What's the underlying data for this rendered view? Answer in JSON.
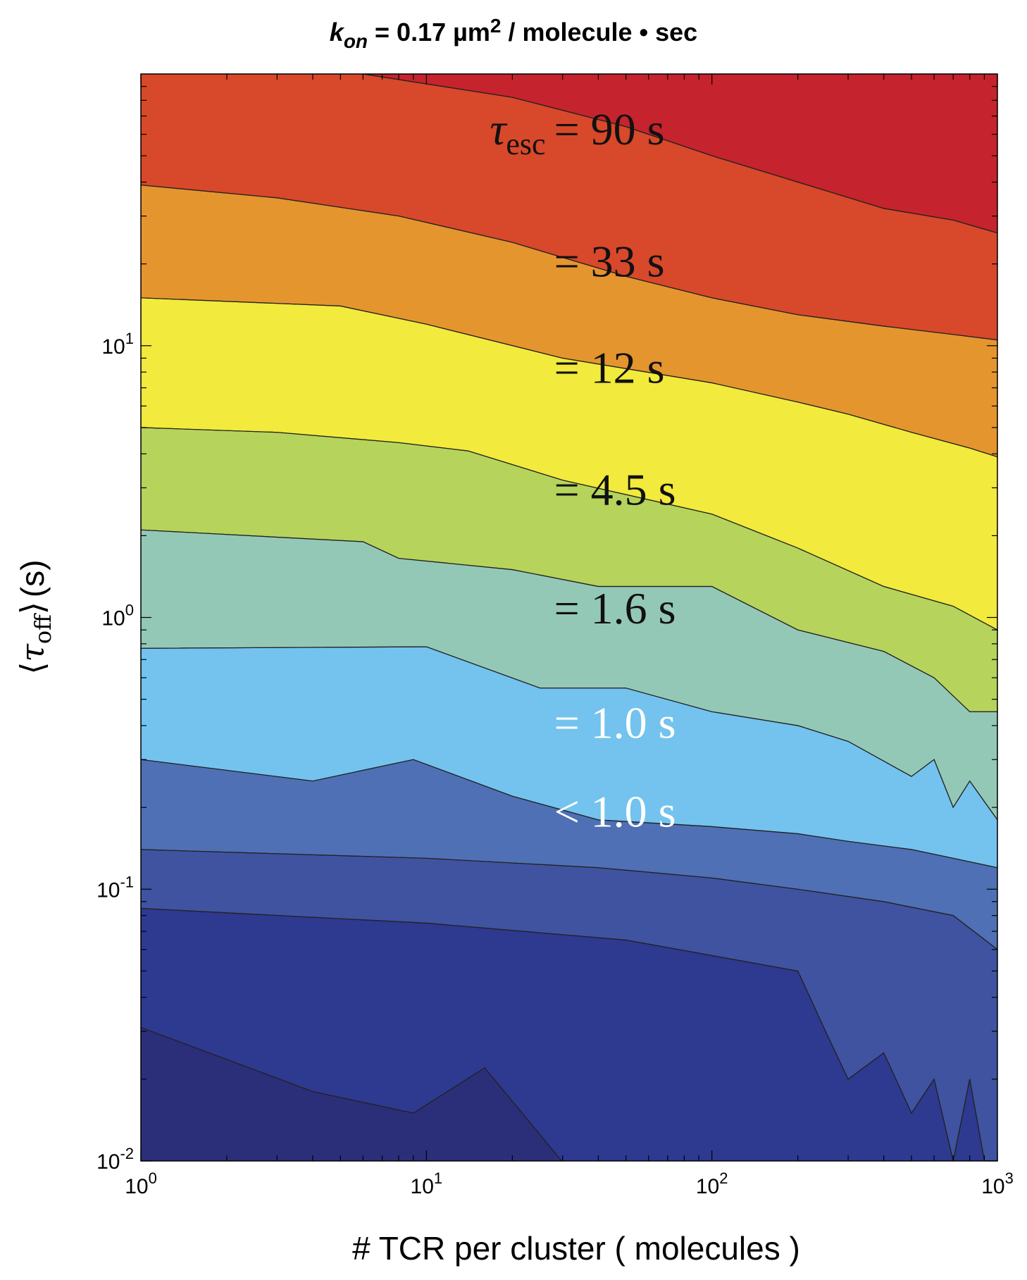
{
  "chart_data": {
    "type": "heatmap",
    "subtype": "filled-contour",
    "title": {
      "prefix": "k",
      "prefix_sub": "on",
      "middle": " = 0.17 µm",
      "sup": "2",
      "suffix": " / molecule • sec"
    },
    "xlabel": "# TCR per cluster ( molecules )",
    "ylabel": {
      "open": "⟨",
      "symbol": "τ",
      "sub": "off",
      "close": "⟩",
      "unit": "(s)"
    },
    "xscale": "log",
    "yscale": "log",
    "xlim": [
      1,
      1000
    ],
    "ylim": [
      0.01,
      100
    ],
    "x_ticks": [
      {
        "value": 1,
        "base": "10",
        "exp": "0"
      },
      {
        "value": 10,
        "base": "10",
        "exp": "1"
      },
      {
        "value": 100,
        "base": "10",
        "exp": "2"
      },
      {
        "value": 1000,
        "base": "10",
        "exp": "3"
      }
    ],
    "y_ticks": [
      {
        "value": 0.01,
        "base": "10",
        "exp": "-2"
      },
      {
        "value": 0.1,
        "base": "10",
        "exp": "-1"
      },
      {
        "value": 1,
        "base": "10",
        "exp": "0"
      },
      {
        "value": 10,
        "base": "10",
        "exp": "1"
      }
    ],
    "label_prefix": {
      "symbol": "τ",
      "sub": "esc"
    },
    "labels": [
      {
        "text": "= 90 s",
        "x": 28,
        "y": 55,
        "color": "#111111",
        "with_prefix": true
      },
      {
        "text": "= 33 s",
        "x": 28,
        "y": 18,
        "color": "#111111"
      },
      {
        "text": "= 12 s",
        "x": 28,
        "y": 7.3,
        "color": "#111111"
      },
      {
        "text": "= 4.5 s",
        "x": 28,
        "y": 2.6,
        "color": "#111111"
      },
      {
        "text": "= 1.6 s",
        "x": 28,
        "y": 0.95,
        "color": "#111111"
      },
      {
        "text": "= 1.0 s",
        "x": 28,
        "y": 0.36,
        "color": "#ffffff"
      },
      {
        "text": "< 1.0 s",
        "x": 28,
        "y": 0.17,
        "color": "#ffffff"
      }
    ],
    "colors": {
      "level_0": "#2b2f7a",
      "level_1": "#2e3990",
      "level_2": "#3f53a0",
      "level_3": "#4f70b5",
      "level_4": "#73c3ee",
      "level_5": "#94c8b6",
      "level_6": "#b6d35c",
      "level_7": "#f2ea3c",
      "level_8": "#e5952e",
      "level_9": "#d8482a",
      "level_10": "#c5232d",
      "contour_line": "#222222"
    },
    "contours": [
      {
        "name": "b1",
        "x": [
          1,
          4,
          9,
          16,
          31,
          1000
        ],
        "y": [
          0.031,
          0.018,
          0.015,
          0.022,
          0.0095,
          0.0095
        ]
      },
      {
        "name": "b2",
        "x": [
          1,
          10,
          50,
          200,
          250,
          300,
          400,
          500,
          600,
          700,
          800,
          900,
          1000
        ],
        "y": [
          0.085,
          0.075,
          0.065,
          0.05,
          0.03,
          0.02,
          0.025,
          0.015,
          0.02,
          0.01,
          0.02,
          0.01,
          0.01
        ]
      },
      {
        "name": "b3",
        "x": [
          1,
          10,
          40,
          100,
          200,
          400,
          700,
          1000
        ],
        "y": [
          0.14,
          0.13,
          0.12,
          0.11,
          0.1,
          0.09,
          0.08,
          0.06
        ]
      },
      {
        "name": "b4",
        "x": [
          1,
          4,
          9,
          20,
          40,
          100,
          200,
          300,
          500,
          700,
          1000
        ],
        "y": [
          0.3,
          0.25,
          0.3,
          0.22,
          0.18,
          0.17,
          0.16,
          0.15,
          0.14,
          0.13,
          0.12
        ]
      },
      {
        "name": "b5",
        "x": [
          1,
          10,
          25,
          50,
          100,
          200,
          300,
          500,
          600,
          700,
          800,
          1000
        ],
        "y": [
          0.77,
          0.78,
          0.55,
          0.55,
          0.45,
          0.4,
          0.35,
          0.26,
          0.3,
          0.2,
          0.25,
          0.18
        ]
      },
      {
        "name": "b6",
        "x": [
          1,
          6,
          8,
          20,
          40,
          100,
          200,
          400,
          600,
          800,
          1000
        ],
        "y": [
          2.1,
          1.9,
          1.65,
          1.5,
          1.3,
          1.3,
          0.9,
          0.75,
          0.6,
          0.45,
          0.45
        ]
      },
      {
        "name": "b7",
        "x": [
          1,
          3,
          8,
          14,
          30,
          100,
          200,
          400,
          700,
          1000
        ],
        "y": [
          5,
          4.8,
          4.4,
          4.1,
          3.2,
          2.4,
          1.8,
          1.3,
          1.1,
          0.9
        ]
      },
      {
        "name": "b8",
        "x": [
          1,
          5,
          10,
          30,
          100,
          200,
          300,
          500,
          800,
          1000
        ],
        "y": [
          15,
          14,
          12,
          9,
          7.3,
          6.2,
          5.6,
          4.8,
          4.2,
          3.9
        ]
      },
      {
        "name": "b9",
        "x": [
          1,
          3,
          8,
          20,
          50,
          100,
          200,
          400,
          700,
          1000
        ],
        "y": [
          39,
          35,
          30,
          24,
          18,
          15,
          13,
          11.8,
          11,
          10.5
        ]
      },
      {
        "name": "b10",
        "x": [
          1,
          6,
          20,
          50,
          100,
          200,
          400,
          700,
          1000
        ],
        "y": [
          110,
          100,
          82,
          64,
          50,
          40,
          32,
          29,
          26
        ]
      }
    ],
    "grid": false,
    "legend": "none"
  }
}
